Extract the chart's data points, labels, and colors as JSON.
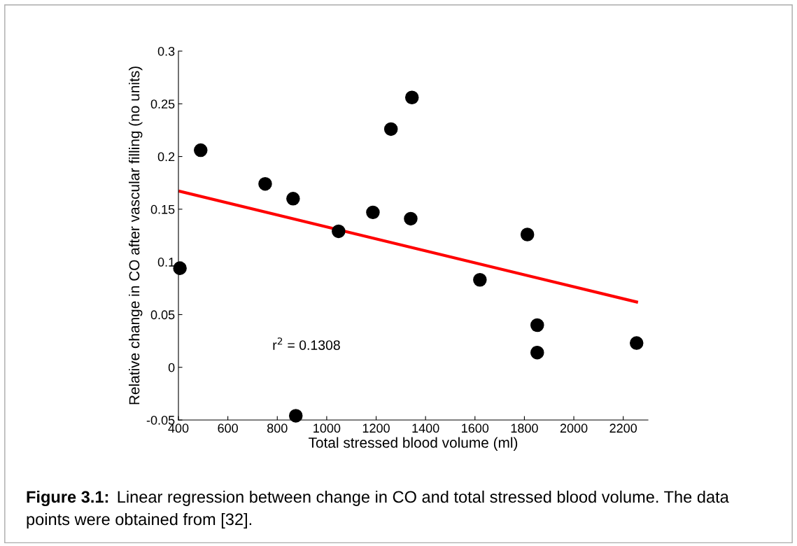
{
  "chart_data": {
    "type": "scatter",
    "xlabel": "Total stressed blood volume (ml)",
    "ylabel": "Relative change in CO after vascular filling (no units)",
    "x": [
      406,
      490,
      751,
      864,
      1048,
      1187,
      1260,
      1345,
      1340,
      1620,
      1812,
      1852,
      1852,
      2254,
      875
    ],
    "series": [
      {
        "color": "#000000",
        "marker": "circle",
        "values": [
          0.094,
          0.206,
          0.174,
          0.16,
          0.129,
          0.147,
          0.226,
          0.256,
          0.141,
          0.083,
          0.126,
          0.04,
          0.014,
          0.023,
          -0.046
        ]
      },
      {
        "type": "line",
        "color": "#ff0000",
        "x": [
          406,
          2254
        ],
        "values": [
          0.167,
          0.062
        ]
      }
    ],
    "xlim": [
      400,
      2300
    ],
    "xticks": [
      400,
      600,
      800,
      1000,
      1200,
      1400,
      1600,
      1800,
      2000,
      2200
    ],
    "ylim": [
      -0.05,
      0.3
    ],
    "yticks": [
      {
        "value": -0.05,
        "label": "-0.05"
      },
      0,
      0.05,
      0.1,
      0.15,
      0.2,
      0.25,
      0.3
    ],
    "grid": false,
    "legend": false,
    "annotations": [
      "r$^{2}$ = 0.1308",
      "Figure 3.1:",
      "Linear regression between change in CO and total stressed blood volume. The data points were obtained from [32]."
    ]
  }
}
